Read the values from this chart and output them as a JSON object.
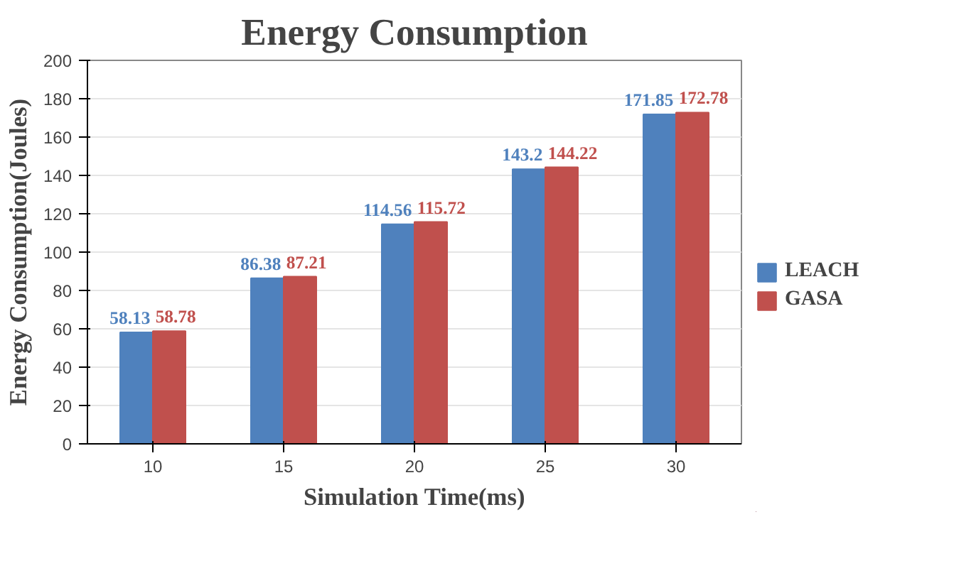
{
  "chart_data": {
    "type": "bar",
    "title": "Energy Consumption",
    "xlabel": "Simulation Time(ms)",
    "ylabel": "Energy Consumption(Joules)",
    "categories": [
      "10",
      "15",
      "20",
      "25",
      "30"
    ],
    "series": [
      {
        "name": "LEACH",
        "color": "#4f81bd",
        "values": [
          58.13,
          86.38,
          114.56,
          143.2,
          171.85
        ]
      },
      {
        "name": "GASA",
        "color": "#c0504d",
        "values": [
          58.78,
          87.21,
          115.72,
          144.22,
          172.78
        ]
      }
    ],
    "ylim": [
      0,
      200
    ],
    "yticks": [
      0,
      20,
      40,
      60,
      80,
      100,
      120,
      140,
      160,
      180,
      200
    ],
    "grid": "y",
    "legend": "right",
    "data_labels": true
  }
}
